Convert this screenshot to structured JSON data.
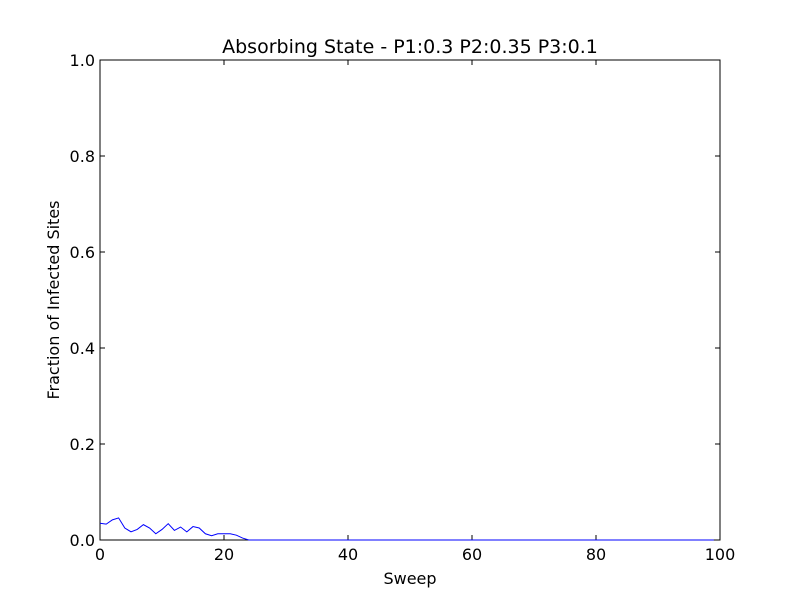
{
  "chart_data": {
    "type": "line",
    "title": "Absorbing State - P1:0.3 P2:0.35 P3:0.1",
    "xlabel": "Sweep",
    "ylabel": "Fraction of Infected Sites",
    "xlim": [
      0,
      100
    ],
    "ylim": [
      0,
      1.0
    ],
    "xticks": [
      0,
      20,
      40,
      60,
      80,
      100
    ],
    "yticks": [
      0.0,
      0.2,
      0.4,
      0.6,
      0.8,
      1.0
    ],
    "xtick_labels": [
      "0",
      "20",
      "40",
      "60",
      "80",
      "100"
    ],
    "ytick_labels": [
      "0.0",
      "0.2",
      "0.4",
      "0.6",
      "0.8",
      "1.0"
    ],
    "grid": false,
    "legend": false,
    "series": [
      {
        "color": "#0000ff",
        "x": [
          0,
          1,
          2,
          3,
          4,
          5,
          6,
          7,
          8,
          9,
          10,
          11,
          12,
          13,
          14,
          15,
          16,
          17,
          18,
          19,
          20,
          21,
          22,
          23,
          24,
          25,
          30,
          40,
          50,
          60,
          70,
          80,
          90,
          99
        ],
        "y": [
          0.035,
          0.033,
          0.042,
          0.046,
          0.025,
          0.017,
          0.022,
          0.032,
          0.025,
          0.013,
          0.022,
          0.034,
          0.02,
          0.027,
          0.017,
          0.028,
          0.025,
          0.013,
          0.009,
          0.013,
          0.013,
          0.013,
          0.01,
          0.004,
          0.0,
          0.0,
          0.0,
          0.0,
          0.0,
          0.0,
          0.0,
          0.0,
          0.0,
          0.0
        ]
      }
    ]
  }
}
